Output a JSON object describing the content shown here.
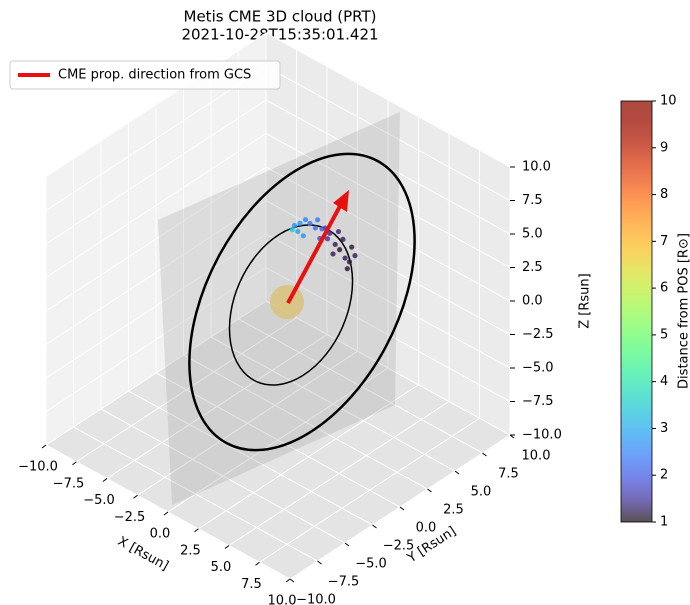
{
  "chart_data": {
    "type": "scatter3d",
    "title": "Metis CME 3D cloud (PRT)",
    "subtitle": "2021-10-28T15:35:01.421",
    "xlabel": "X [Rsun]",
    "ylabel": "Y [Rsun]",
    "zlabel": "Z [Rsun]",
    "xlim": [
      -10,
      10
    ],
    "ylim": [
      -10,
      10
    ],
    "zlim": [
      -10,
      10
    ],
    "xticks": [
      {
        "value": -10,
        "label": "−10.0"
      },
      {
        "value": -7.5,
        "label": "−7.5"
      },
      {
        "value": -5,
        "label": "−5.0"
      },
      {
        "value": -2.5,
        "label": "−2.5"
      },
      {
        "value": 0,
        "label": "0.0"
      },
      {
        "value": 2.5,
        "label": "2.5"
      },
      {
        "value": 5,
        "label": "5.0"
      },
      {
        "value": 7.5,
        "label": "7.5"
      },
      {
        "value": 10,
        "label": "10.0"
      }
    ],
    "yticks": [
      {
        "value": -10,
        "label": "−10.0"
      },
      {
        "value": -7.5,
        "label": "−7.5"
      },
      {
        "value": -5,
        "label": "−5.0"
      },
      {
        "value": -2.5,
        "label": "−2.5"
      },
      {
        "value": 0,
        "label": "0.0"
      },
      {
        "value": 2.5,
        "label": "2.5"
      },
      {
        "value": 5,
        "label": "5.0"
      },
      {
        "value": 7.5,
        "label": "7.5"
      },
      {
        "value": 10,
        "label": "10.0"
      }
    ],
    "zticks": [
      {
        "value": -10,
        "label": "−10.0"
      },
      {
        "value": -7.5,
        "label": "−7.5"
      },
      {
        "value": -5,
        "label": "−5.0"
      },
      {
        "value": -2.5,
        "label": "−2.5"
      },
      {
        "value": 0,
        "label": "0.0"
      },
      {
        "value": 2.5,
        "label": "2.5"
      },
      {
        "value": 5,
        "label": "5.0"
      },
      {
        "value": 7.5,
        "label": "7.5"
      },
      {
        "value": 10,
        "label": "10.0"
      }
    ],
    "grid": true,
    "legend": {
      "label": "CME prop. direction from GCS",
      "color": "#e8110f",
      "loc": "upper left"
    },
    "points": {
      "x": [
        0,
        0,
        0,
        0,
        0,
        0,
        0,
        0,
        0,
        0,
        0,
        0,
        0,
        0,
        0,
        0,
        0,
        0,
        0,
        0,
        0,
        0,
        0,
        0
      ],
      "y": [
        1.5,
        2.0,
        2.5,
        2.9,
        3.4,
        1.8,
        3.6,
        1.3,
        4.0,
        2.3,
        4.7,
        5.2,
        5.6,
        6.1,
        6.5,
        4.5,
        5.5,
        5.9,
        6.7,
        4.3,
        5.0,
        6.3,
        7.0,
        3.8
      ],
      "z": [
        5.2,
        5.1,
        5.1,
        4.6,
        4.0,
        4.6,
        4.5,
        5.0,
        3.6,
        4.0,
        2.9,
        1.8,
        1.2,
        0.3,
        -0.2,
        2.6,
        2.6,
        1.8,
        0.8,
        3.5,
        1.2,
        -0.6,
        0.0,
        3.0
      ],
      "c": [
        2.6,
        2.8,
        2.5,
        2.3,
        2.2,
        2.9,
        2.4,
        3.5,
        2.0,
        2.7,
        1.4,
        1.2,
        1.1,
        1.2,
        1.1,
        1.5,
        1.3,
        1.2,
        1.1,
        1.7,
        1.2,
        1.1,
        1.2,
        1.8
      ]
    },
    "colorbar": {
      "label": "Distance from POS [R⊙]",
      "lim": [
        1,
        10
      ],
      "ticks": [
        1,
        2,
        3,
        4,
        5,
        6,
        7,
        8,
        9,
        10
      ],
      "colormap": "turbo"
    }
  }
}
